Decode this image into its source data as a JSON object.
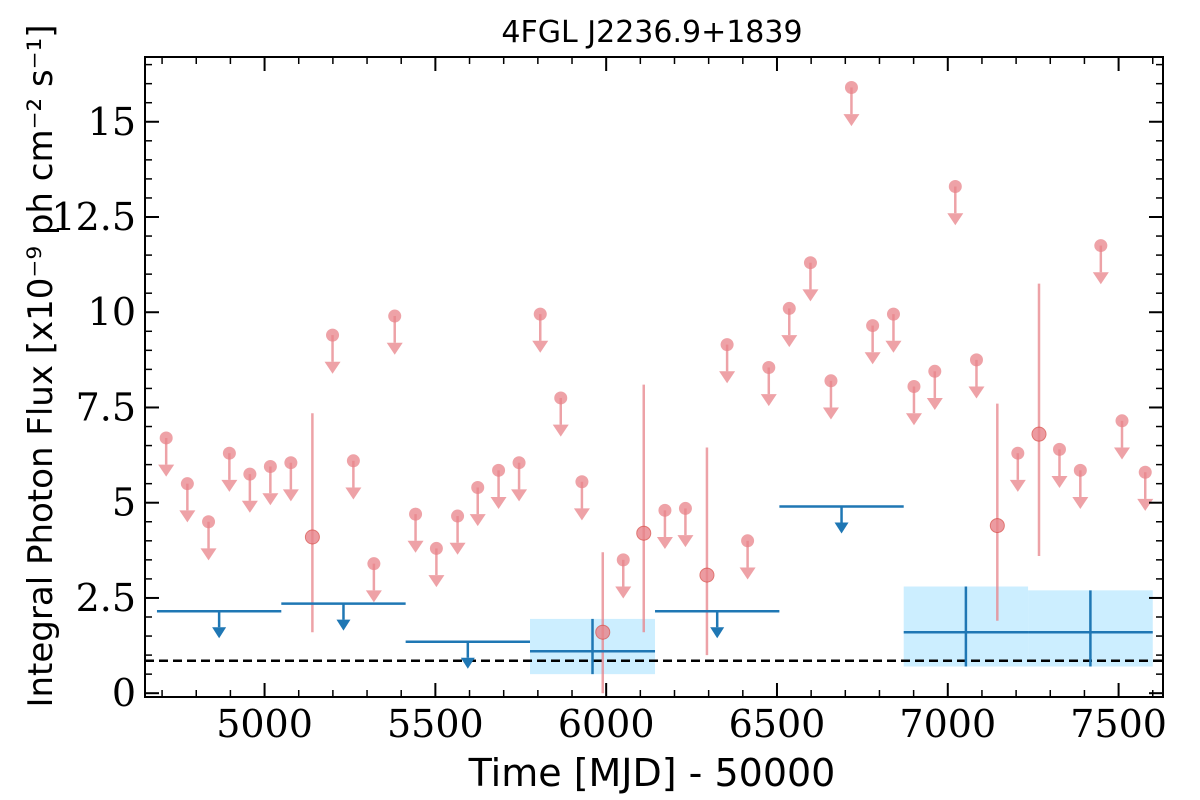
{
  "chart_data": {
    "type": "scatter",
    "title": "4FGL J2236.9+1839",
    "xlabel": "Time [MJD] - 50000",
    "ylabel": "Integral Photon Flux [x10⁻⁹ ph cm⁻² s⁻¹]",
    "xlim": [
      4650,
      7630
    ],
    "ylim": [
      -0.1,
      16.7
    ],
    "grid": false,
    "xticks": [
      5000,
      5500,
      6000,
      6500,
      7000,
      7500
    ],
    "xtick_labels": [
      "5000",
      "5500",
      "6000",
      "6500",
      "7000",
      "7500"
    ],
    "yticks": [
      0,
      2.5,
      5,
      7.5,
      10,
      12.5,
      15
    ],
    "ytick_labels": [
      "0",
      "2.5",
      "5",
      "7.5",
      "10",
      "12.5",
      "15"
    ],
    "reference_line": {
      "y": 0.85,
      "style": "dashed",
      "color": "#000000"
    },
    "colors": {
      "fine": "#e8838a",
      "coarse": "#1f77b4",
      "band": "#cceeff"
    },
    "series": [
      {
        "kind": "fine_upper_limits",
        "points": [
          {
            "x": 4712,
            "y": 6.7
          },
          {
            "x": 4774,
            "y": 5.5
          },
          {
            "x": 4836,
            "y": 4.5
          },
          {
            "x": 4897,
            "y": 6.3
          },
          {
            "x": 4957,
            "y": 5.75
          },
          {
            "x": 5017,
            "y": 5.95
          },
          {
            "x": 5077,
            "y": 6.05
          },
          {
            "x": 5199,
            "y": 9.4
          },
          {
            "x": 5260,
            "y": 6.1
          },
          {
            "x": 5320,
            "y": 3.4
          },
          {
            "x": 5381,
            "y": 9.9
          },
          {
            "x": 5442,
            "y": 4.7
          },
          {
            "x": 5503,
            "y": 3.8
          },
          {
            "x": 5565,
            "y": 4.65
          },
          {
            "x": 5624,
            "y": 5.4
          },
          {
            "x": 5685,
            "y": 5.85
          },
          {
            "x": 5745,
            "y": 6.05
          },
          {
            "x": 5807,
            "y": 9.95
          },
          {
            "x": 5867,
            "y": 7.75
          },
          {
            "x": 5929,
            "y": 5.55
          },
          {
            "x": 6050,
            "y": 3.5
          },
          {
            "x": 6172,
            "y": 4.8
          },
          {
            "x": 6232,
            "y": 4.85
          },
          {
            "x": 6354,
            "y": 9.15
          },
          {
            "x": 6414,
            "y": 4.0
          },
          {
            "x": 6476,
            "y": 8.55
          },
          {
            "x": 6536,
            "y": 10.1
          },
          {
            "x": 6598,
            "y": 11.3
          },
          {
            "x": 6658,
            "y": 8.2
          },
          {
            "x": 6718,
            "y": 15.9
          },
          {
            "x": 6780,
            "y": 9.65
          },
          {
            "x": 6841,
            "y": 9.95
          },
          {
            "x": 6901,
            "y": 8.05
          },
          {
            "x": 6962,
            "y": 8.45
          },
          {
            "x": 7022,
            "y": 13.3
          },
          {
            "x": 7084,
            "y": 8.75
          },
          {
            "x": 7205,
            "y": 6.3
          },
          {
            "x": 7327,
            "y": 6.4
          },
          {
            "x": 7388,
            "y": 5.85
          },
          {
            "x": 7448,
            "y": 11.75
          },
          {
            "x": 7510,
            "y": 7.15
          },
          {
            "x": 7578,
            "y": 5.8
          }
        ]
      },
      {
        "kind": "fine_detections",
        "points": [
          {
            "x": 5140,
            "y": 4.1,
            "ylow": 1.6,
            "yhigh": 7.35
          },
          {
            "x": 5990,
            "y": 1.6,
            "ylow": 0.0,
            "yhigh": 3.7
          },
          {
            "x": 6110,
            "y": 4.2,
            "ylow": 1.6,
            "yhigh": 8.1
          },
          {
            "x": 6295,
            "y": 3.1,
            "ylow": 1.0,
            "yhigh": 6.45
          },
          {
            "x": 7145,
            "y": 4.4,
            "ylow": 1.9,
            "yhigh": 7.6
          },
          {
            "x": 7267,
            "y": 6.8,
            "ylow": 3.6,
            "yhigh": 10.75
          }
        ]
      },
      {
        "kind": "coarse_upper_limits",
        "points": [
          {
            "xmin": 4685,
            "xmax": 5049,
            "y": 2.15
          },
          {
            "xmin": 5049,
            "xmax": 5413,
            "y": 2.35
          },
          {
            "xmin": 5413,
            "xmax": 5777,
            "y": 1.35
          },
          {
            "xmin": 6143,
            "xmax": 6507,
            "y": 2.15
          },
          {
            "xmin": 6507,
            "xmax": 6871,
            "y": 4.9
          }
        ]
      },
      {
        "kind": "coarse_detections",
        "points": [
          {
            "xmin": 5777,
            "xmax": 6143,
            "y": 1.1,
            "ylow": 0.5,
            "yhigh": 1.95
          },
          {
            "xmin": 6871,
            "xmax": 7235,
            "y": 1.6,
            "ylow": 0.7,
            "yhigh": 2.8
          },
          {
            "xmin": 7235,
            "xmax": 7600,
            "y": 1.6,
            "ylow": 0.7,
            "yhigh": 2.7
          }
        ]
      }
    ]
  }
}
